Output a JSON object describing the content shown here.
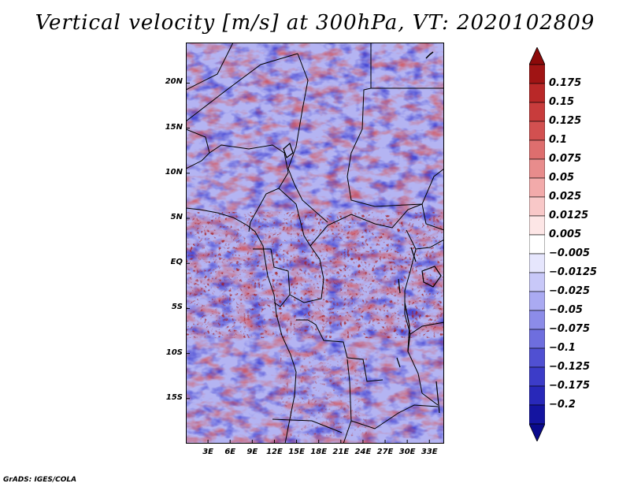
{
  "title": "Vertical velocity [m/s] at 300hPa, VT: 2020102809",
  "lat_labels": [
    "20N",
    "15N",
    "10N",
    "5N",
    "EQ",
    "5S",
    "10S",
    "15S"
  ],
  "lat_values": [
    20,
    15,
    10,
    5,
    0,
    -5,
    -10,
    -15
  ],
  "lon_labels": [
    "3E",
    "6E",
    "9E",
    "12E",
    "15E",
    "18E",
    "21E",
    "24E",
    "27E",
    "30E",
    "33E"
  ],
  "lon_values": [
    3,
    6,
    9,
    12,
    15,
    18,
    21,
    24,
    27,
    30,
    33
  ],
  "map_extent": {
    "lon_min": 0,
    "lon_max": 35,
    "lat_min": -20,
    "lat_max": 24.5
  },
  "colorbar": {
    "labels": [
      "0.175",
      "0.15",
      "0.125",
      "0.1",
      "0.075",
      "0.05",
      "0.025",
      "0.0125",
      "0.005",
      "−0.005",
      "−0.0125",
      "−0.025",
      "−0.05",
      "−0.075",
      "−0.1",
      "−0.125",
      "−0.175",
      "−0.2"
    ],
    "colors": [
      "#a01414",
      "#b92828",
      "#c83c3c",
      "#d25050",
      "#de6e6e",
      "#e88c8c",
      "#f2aaaa",
      "#f8c8c8",
      "#fde6e6",
      "#ffffff",
      "#e6e6fd",
      "#c8c8f8",
      "#aaaaf2",
      "#8c8ce8",
      "#6e6ede",
      "#5050d2",
      "#3c3cc8",
      "#2828b9",
      "#1414a0"
    ],
    "max_color": "#8c0a0a",
    "min_color": "#0a0a8c"
  },
  "footer": "GrADS: IGES/COLA"
}
